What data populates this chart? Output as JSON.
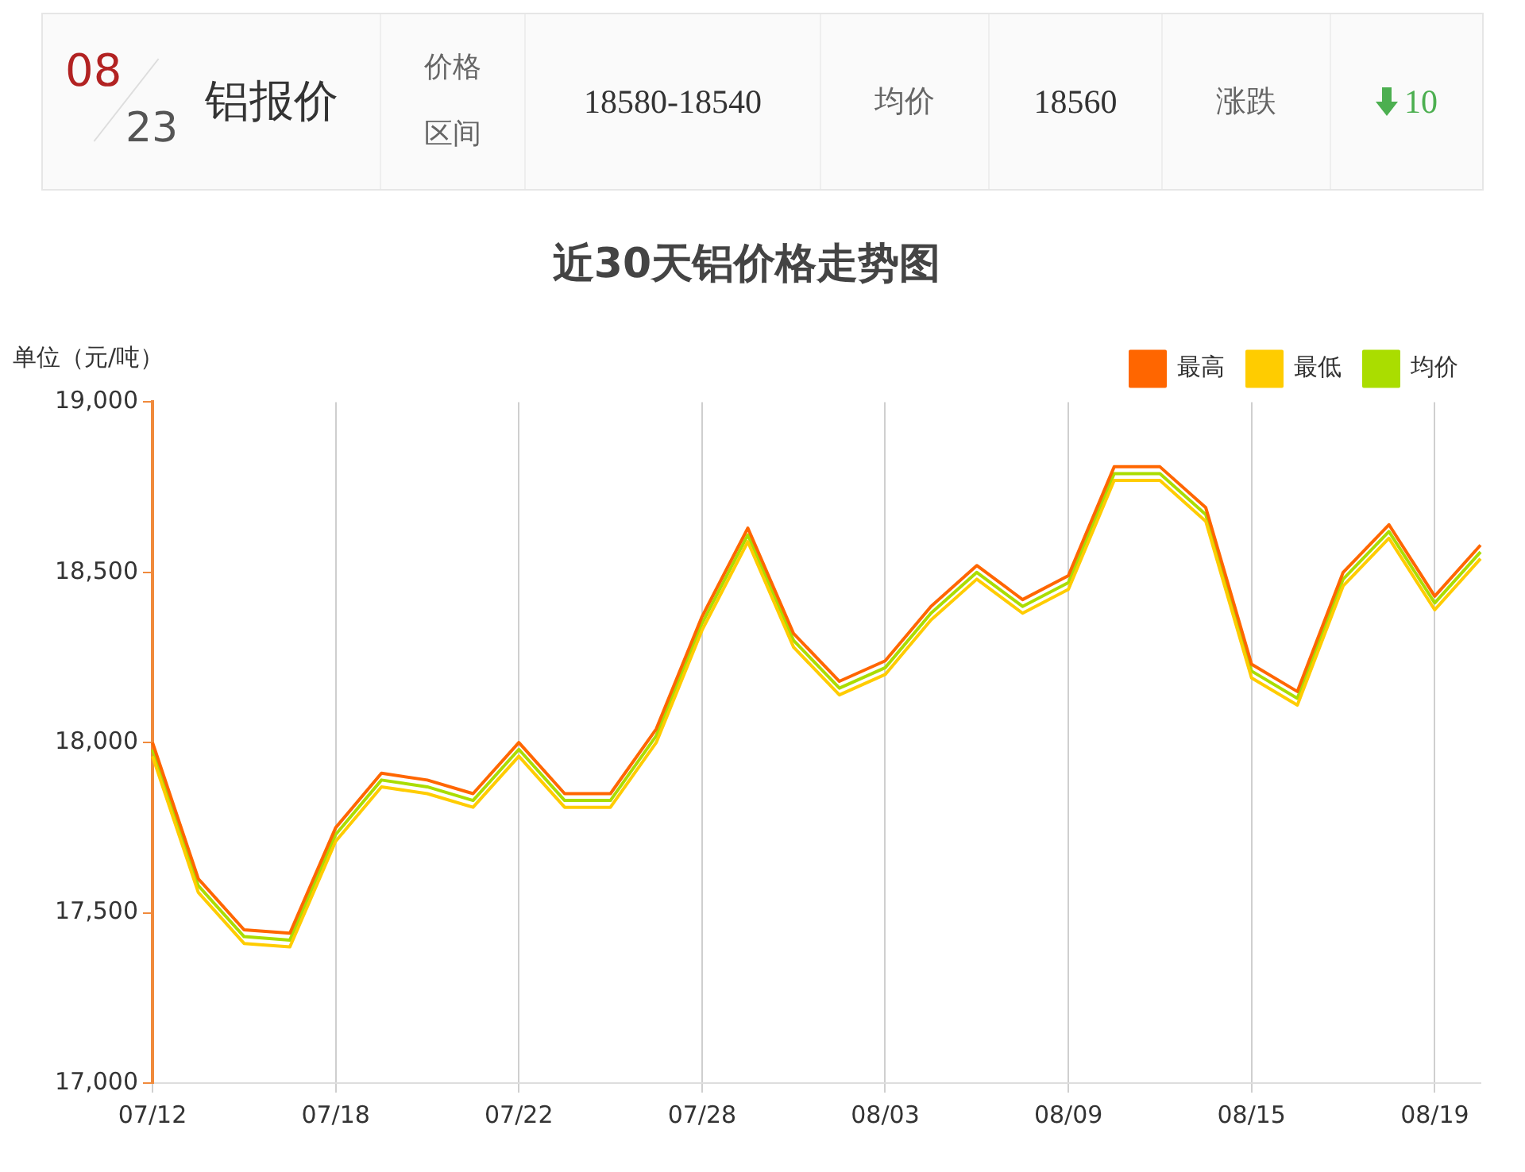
{
  "chart_data": [
    {
      "type": "other",
      "annotations": [
        "08",
        "23",
        "铝报价",
        "价格",
        "区间",
        "18580-18540",
        "均价",
        "18560",
        "涨跌",
        "10"
      ]
    },
    {
      "type": "line",
      "title": "近30天铝价格走势图",
      "ylabel": "单位（元/吨）",
      "categories": [
        "07/12",
        null,
        null,
        null,
        "07/18",
        null,
        null,
        null,
        "07/22",
        null,
        null,
        null,
        "07/28",
        null,
        null,
        null,
        "08/03",
        null,
        null,
        null,
        "08/09",
        null,
        null,
        null,
        "08/15",
        null,
        null,
        null,
        "08/19",
        null
      ],
      "series": [
        {
          "name": "最高",
          "color": "#ff6600",
          "values": [
            18000,
            17600,
            17450,
            17440,
            17750,
            17910,
            17890,
            17850,
            18000,
            17850,
            17850,
            18040,
            18370,
            18630,
            18320,
            18180,
            18240,
            18400,
            18520,
            18420,
            18490,
            18810,
            18810,
            18690,
            18230,
            18150,
            18500,
            18640,
            18430,
            18580
          ]
        },
        {
          "name": "最低",
          "color": "#ffcc00",
          "values": [
            17960,
            17560,
            17410,
            17400,
            17710,
            17870,
            17850,
            17810,
            17960,
            17810,
            17810,
            18000,
            18330,
            18590,
            18280,
            18140,
            18200,
            18360,
            18480,
            18380,
            18450,
            18770,
            18770,
            18650,
            18190,
            18110,
            18460,
            18600,
            18390,
            18540
          ]
        },
        {
          "name": "均价",
          "color": "#aadd00",
          "values": [
            17980,
            17580,
            17430,
            17420,
            17730,
            17890,
            17870,
            17830,
            17980,
            17830,
            17830,
            18020,
            18350,
            18610,
            18300,
            18160,
            18220,
            18380,
            18500,
            18400,
            18470,
            18790,
            18790,
            18670,
            18210,
            18130,
            18480,
            18620,
            18410,
            18560
          ]
        }
      ],
      "ylim": [
        17000,
        19000
      ],
      "yticks": [
        {
          "value": 17000,
          "label": "17,000"
        },
        {
          "value": 17500,
          "label": "17,500"
        },
        {
          "value": 18000,
          "label": "18,000"
        },
        {
          "value": 18500,
          "label": "18,500"
        },
        {
          "value": 19000,
          "label": "19,000"
        }
      ],
      "grid": "x",
      "legend": "top right",
      "marker": "none",
      "line_style": "solid"
    }
  ]
}
